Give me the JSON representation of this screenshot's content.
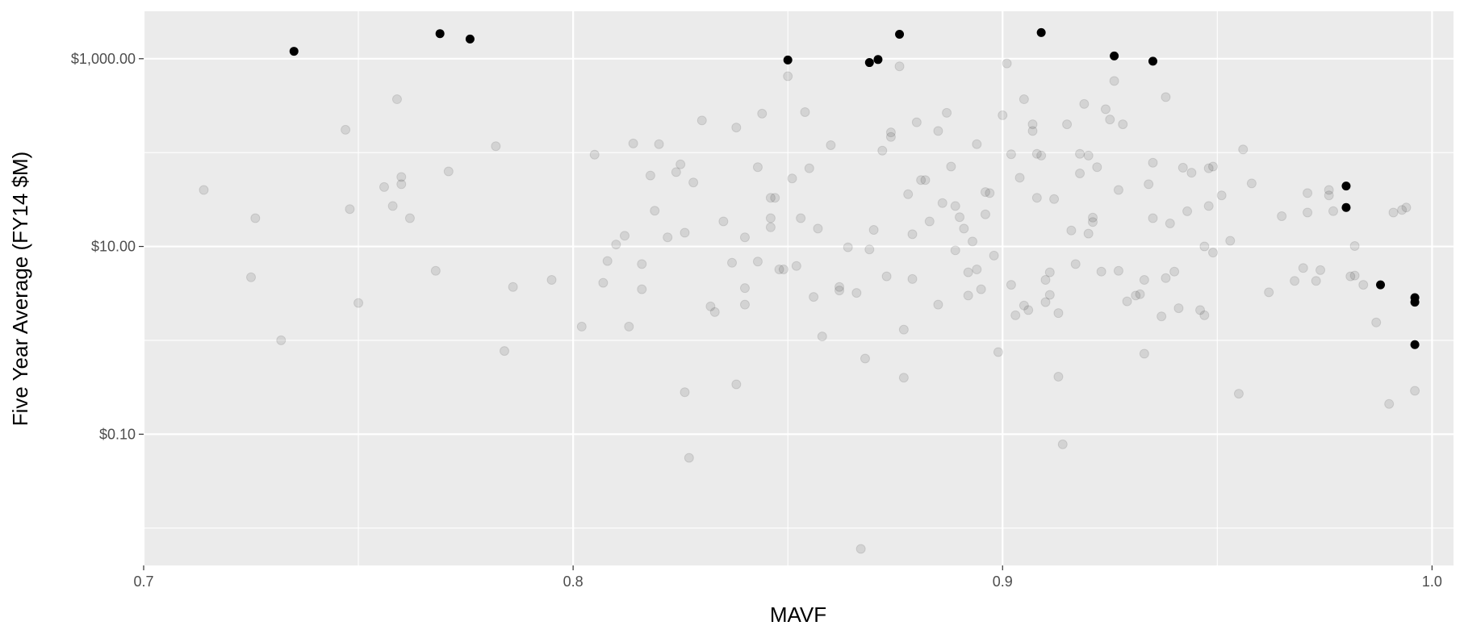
{
  "chart_data": {
    "type": "scatter",
    "title": "",
    "xlabel": "MAVF",
    "ylabel": "Five Year Average (FY14 $M)",
    "y_scale": "log10",
    "xlim": [
      0.7,
      1.005
    ],
    "ylim": [
      0.004,
      3200
    ],
    "x_ticks": [
      0.7,
      0.8,
      0.9,
      1.0
    ],
    "x_tick_labels": [
      "0.7",
      "0.8",
      "0.9",
      "1.0"
    ],
    "y_ticks": [
      0.1,
      10,
      1000
    ],
    "y_tick_labels": [
      "$0.10",
      "$10.00",
      "$1,000.00"
    ],
    "y_minor_gridlines": [
      0.01,
      1,
      100
    ],
    "grid": true,
    "legend": "none",
    "colors": {
      "panel_background": "#ebebeb",
      "gridline": "#ffffff",
      "highlighted_point": "#000000",
      "background_point": "#bdbdbd"
    },
    "series": [
      {
        "values": [
          [
            0.735,
            1200
          ],
          [
            0.769,
            1850
          ],
          [
            0.776,
            1620
          ],
          [
            0.85,
            970
          ],
          [
            0.869,
            910
          ],
          [
            0.871,
            980
          ],
          [
            0.876,
            1820
          ],
          [
            0.909,
            1900
          ],
          [
            0.926,
            1070
          ],
          [
            0.935,
            940
          ],
          [
            0.98,
            44
          ],
          [
            0.98,
            26
          ],
          [
            0.988,
            3.9
          ],
          [
            0.996,
            2.85
          ],
          [
            0.996,
            2.55
          ],
          [
            0.996,
            0.9
          ]
        ]
      },
      {
        "values": [
          [
            0.714,
            40
          ],
          [
            0.725,
            4.7
          ],
          [
            0.726,
            20
          ],
          [
            0.732,
            1.0
          ],
          [
            0.747,
            175
          ],
          [
            0.748,
            25
          ],
          [
            0.75,
            2.5
          ],
          [
            0.756,
            43
          ],
          [
            0.758,
            27
          ],
          [
            0.759,
            370
          ],
          [
            0.76,
            46
          ],
          [
            0.76,
            55
          ],
          [
            0.762,
            20
          ],
          [
            0.768,
            5.5
          ],
          [
            0.771,
            63
          ],
          [
            0.782,
            117
          ],
          [
            0.784,
            0.77
          ],
          [
            0.786,
            3.7
          ],
          [
            0.795,
            4.4
          ],
          [
            0.802,
            1.4
          ],
          [
            0.805,
            95
          ],
          [
            0.807,
            4.1
          ],
          [
            0.808,
            7.0
          ],
          [
            0.81,
            10.5
          ],
          [
            0.812,
            13
          ],
          [
            0.813,
            1.4
          ],
          [
            0.814,
            125
          ],
          [
            0.816,
            3.5
          ],
          [
            0.816,
            6.5
          ],
          [
            0.818,
            57
          ],
          [
            0.819,
            24
          ],
          [
            0.82,
            123
          ],
          [
            0.822,
            12.5
          ],
          [
            0.824,
            62
          ],
          [
            0.825,
            75
          ],
          [
            0.826,
            0.28
          ],
          [
            0.826,
            14
          ],
          [
            0.827,
            0.056
          ],
          [
            0.828,
            48
          ],
          [
            0.83,
            220
          ],
          [
            0.832,
            2.3
          ],
          [
            0.833,
            2.0
          ],
          [
            0.835,
            18.5
          ],
          [
            0.837,
            6.7
          ],
          [
            0.838,
            0.34
          ],
          [
            0.838,
            185
          ],
          [
            0.84,
            2.4
          ],
          [
            0.84,
            3.6
          ],
          [
            0.84,
            12.5
          ],
          [
            0.843,
            70
          ],
          [
            0.843,
            6.9
          ],
          [
            0.844,
            260
          ],
          [
            0.846,
            16
          ],
          [
            0.846,
            33
          ],
          [
            0.846,
            20
          ],
          [
            0.847,
            33
          ],
          [
            0.848,
            5.7
          ],
          [
            0.849,
            5.7
          ],
          [
            0.85,
            650
          ],
          [
            0.851,
            53
          ],
          [
            0.852,
            6.2
          ],
          [
            0.853,
            20
          ],
          [
            0.854,
            270
          ],
          [
            0.855,
            68
          ],
          [
            0.856,
            2.9
          ],
          [
            0.857,
            15.5
          ],
          [
            0.858,
            1.1
          ],
          [
            0.86,
            120
          ],
          [
            0.862,
            3.4
          ],
          [
            0.862,
            3.7
          ],
          [
            0.864,
            9.8
          ],
          [
            0.866,
            3.2
          ],
          [
            0.867,
            0.006
          ],
          [
            0.868,
            0.64
          ],
          [
            0.869,
            9.3
          ],
          [
            0.87,
            15
          ],
          [
            0.872,
            105
          ],
          [
            0.873,
            4.8
          ],
          [
            0.874,
            147
          ],
          [
            0.874,
            164
          ],
          [
            0.876,
            830
          ],
          [
            0.877,
            1.3
          ],
          [
            0.877,
            0.4
          ],
          [
            0.878,
            36
          ],
          [
            0.879,
            13.5
          ],
          [
            0.879,
            4.5
          ],
          [
            0.88,
            210
          ],
          [
            0.881,
            51
          ],
          [
            0.882,
            51
          ],
          [
            0.883,
            18.5
          ],
          [
            0.885,
            170
          ],
          [
            0.885,
            2.4
          ],
          [
            0.886,
            29
          ],
          [
            0.887,
            265
          ],
          [
            0.888,
            71
          ],
          [
            0.889,
            9.1
          ],
          [
            0.889,
            27
          ],
          [
            0.89,
            20.5
          ],
          [
            0.891,
            15.5
          ],
          [
            0.892,
            3.0
          ],
          [
            0.892,
            5.3
          ],
          [
            0.893,
            11.3
          ],
          [
            0.894,
            123
          ],
          [
            0.894,
            5.7
          ],
          [
            0.895,
            3.5
          ],
          [
            0.896,
            38
          ],
          [
            0.896,
            22
          ],
          [
            0.897,
            37
          ],
          [
            0.898,
            8.0
          ],
          [
            0.899,
            0.75
          ],
          [
            0.9,
            250
          ],
          [
            0.901,
            890
          ],
          [
            0.902,
            96
          ],
          [
            0.902,
            3.9
          ],
          [
            0.903,
            1.85
          ],
          [
            0.904,
            54
          ],
          [
            0.905,
            370
          ],
          [
            0.905,
            2.35
          ],
          [
            0.906,
            2.1
          ],
          [
            0.907,
            200
          ],
          [
            0.907,
            170
          ],
          [
            0.908,
            97
          ],
          [
            0.908,
            33
          ],
          [
            0.909,
            93
          ],
          [
            0.91,
            4.4
          ],
          [
            0.91,
            2.55
          ],
          [
            0.911,
            5.3
          ],
          [
            0.911,
            3.05
          ],
          [
            0.912,
            32
          ],
          [
            0.913,
            1.95
          ],
          [
            0.913,
            0.41
          ],
          [
            0.914,
            0.078
          ],
          [
            0.915,
            200
          ],
          [
            0.916,
            14.8
          ],
          [
            0.917,
            6.5
          ],
          [
            0.918,
            60
          ],
          [
            0.918,
            97
          ],
          [
            0.919,
            330
          ],
          [
            0.92,
            13.7
          ],
          [
            0.92,
            93
          ],
          [
            0.921,
            20.3
          ],
          [
            0.921,
            18.2
          ],
          [
            0.922,
            70
          ],
          [
            0.923,
            5.4
          ],
          [
            0.924,
            290
          ],
          [
            0.925,
            225
          ],
          [
            0.926,
            580
          ],
          [
            0.927,
            40
          ],
          [
            0.927,
            5.5
          ],
          [
            0.928,
            200
          ],
          [
            0.929,
            2.6
          ],
          [
            0.931,
            3.0
          ],
          [
            0.932,
            3.1
          ],
          [
            0.933,
            4.4
          ],
          [
            0.933,
            0.72
          ],
          [
            0.934,
            46
          ],
          [
            0.935,
            78
          ],
          [
            0.935,
            20
          ],
          [
            0.937,
            1.8
          ],
          [
            0.938,
            4.6
          ],
          [
            0.938,
            390
          ],
          [
            0.939,
            17.6
          ],
          [
            0.94,
            5.4
          ],
          [
            0.941,
            2.2
          ],
          [
            0.942,
            69
          ],
          [
            0.943,
            23.7
          ],
          [
            0.944,
            61
          ],
          [
            0.946,
            2.1
          ],
          [
            0.947,
            1.85
          ],
          [
            0.947,
            10
          ],
          [
            0.948,
            27
          ],
          [
            0.948,
            68
          ],
          [
            0.949,
            8.6
          ],
          [
            0.949,
            71
          ],
          [
            0.951,
            35
          ],
          [
            0.953,
            11.5
          ],
          [
            0.955,
            0.27
          ],
          [
            0.956,
            108
          ],
          [
            0.958,
            47
          ],
          [
            0.962,
            3.25
          ],
          [
            0.965,
            21
          ],
          [
            0.968,
            4.3
          ],
          [
            0.97,
            5.9
          ],
          [
            0.971,
            23
          ],
          [
            0.971,
            37
          ],
          [
            0.973,
            4.3
          ],
          [
            0.974,
            5.6
          ],
          [
            0.976,
            40
          ],
          [
            0.976,
            35
          ],
          [
            0.977,
            23.8
          ],
          [
            0.981,
            4.8
          ],
          [
            0.982,
            4.9
          ],
          [
            0.982,
            10.1
          ],
          [
            0.984,
            3.9
          ],
          [
            0.987,
            1.55
          ],
          [
            0.99,
            0.21
          ],
          [
            0.991,
            23
          ],
          [
            0.993,
            24.5
          ],
          [
            0.994,
            26
          ],
          [
            0.996,
            0.29
          ]
        ]
      }
    ]
  }
}
